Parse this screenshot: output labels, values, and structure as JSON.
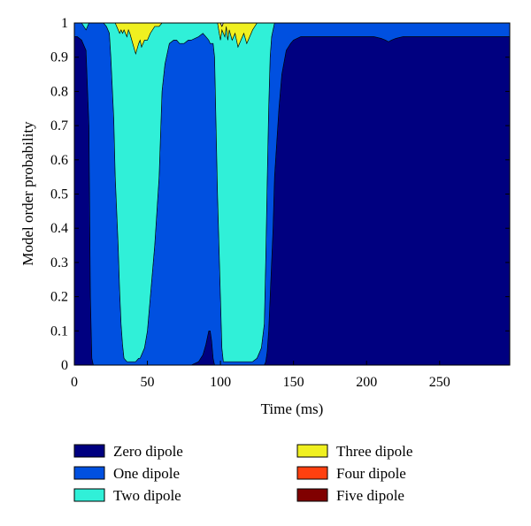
{
  "chart_data": {
    "type": "area",
    "stacked": true,
    "title": "",
    "xlabel": "Time (ms)",
    "ylabel": "Model order probability",
    "xlim": [
      0,
      298
    ],
    "ylim": [
      0,
      1
    ],
    "xticks": [
      0,
      50,
      100,
      150,
      200,
      250
    ],
    "yticks": [
      0,
      0.1,
      0.2,
      0.3,
      0.4,
      0.5,
      0.6,
      0.7,
      0.8,
      0.9,
      1
    ],
    "ytick_labels": [
      "0",
      "0.1",
      "0.2",
      "0.3",
      "0.4",
      "0.5",
      "0.6",
      "0.7",
      "0.8",
      "0.9",
      "1"
    ],
    "grid": false,
    "legend_position": "bottom",
    "x": [
      0,
      2,
      5,
      8,
      10,
      11,
      12,
      13,
      15,
      20,
      22,
      24,
      25,
      27,
      28,
      30,
      31,
      32,
      33,
      34,
      36,
      37,
      38,
      40,
      42,
      44,
      45,
      46,
      48,
      50,
      52,
      55,
      58,
      60,
      62,
      64,
      65,
      68,
      70,
      72,
      75,
      78,
      80,
      85,
      88,
      90,
      92,
      93,
      94,
      95,
      96,
      97,
      98,
      100,
      101,
      102,
      103,
      104,
      105,
      106,
      108,
      110,
      112,
      114,
      116,
      118,
      120,
      122,
      125,
      128,
      130,
      131,
      132,
      133,
      134,
      135,
      136,
      137,
      140,
      142,
      145,
      148,
      150,
      155,
      160,
      170,
      180,
      190,
      200,
      205,
      210,
      213,
      215,
      217,
      220,
      225,
      230,
      240,
      250,
      260,
      270,
      280,
      290,
      298
    ],
    "series": [
      {
        "name": "Zero dipole",
        "color": "#000080",
        "values": [
          0.96,
          0.96,
          0.95,
          0.92,
          0.7,
          0.2,
          0.02,
          0,
          0,
          0,
          0,
          0,
          0,
          0,
          0,
          0,
          0,
          0,
          0,
          0,
          0,
          0,
          0,
          0,
          0,
          0,
          0,
          0,
          0,
          0,
          0,
          0,
          0,
          0,
          0,
          0,
          0,
          0,
          0,
          0,
          0,
          0,
          0,
          0.01,
          0.03,
          0.06,
          0.1,
          0.1,
          0.07,
          0.02,
          0,
          0,
          0,
          0,
          0,
          0,
          0,
          0,
          0,
          0,
          0,
          0,
          0,
          0,
          0,
          0,
          0,
          0,
          0,
          0,
          0,
          0.01,
          0.04,
          0.1,
          0.2,
          0.3,
          0.4,
          0.55,
          0.75,
          0.85,
          0.92,
          0.94,
          0.95,
          0.96,
          0.96,
          0.96,
          0.96,
          0.96,
          0.96,
          0.96,
          0.955,
          0.95,
          0.945,
          0.95,
          0.955,
          0.96,
          0.96,
          0.96,
          0.96,
          0.96,
          0.96,
          0.96,
          0.96,
          0.96
        ]
      },
      {
        "name": "One dipole",
        "color": "#0050e0",
        "values": [
          0.04,
          0.04,
          0.05,
          0.06,
          0.3,
          0.8,
          0.98,
          1,
          1,
          1,
          0.99,
          0.97,
          0.9,
          0.72,
          0.55,
          0.35,
          0.22,
          0.12,
          0.06,
          0.02,
          0.01,
          0.01,
          0.01,
          0.01,
          0.01,
          0.02,
          0.02,
          0.03,
          0.05,
          0.1,
          0.2,
          0.35,
          0.55,
          0.8,
          0.88,
          0.92,
          0.94,
          0.95,
          0.95,
          0.94,
          0.94,
          0.95,
          0.95,
          0.95,
          0.94,
          0.9,
          0.85,
          0.84,
          0.87,
          0.92,
          0.9,
          0.7,
          0.5,
          0.2,
          0.05,
          0.01,
          0.01,
          0.01,
          0.01,
          0.01,
          0.01,
          0.01,
          0.01,
          0.01,
          0.01,
          0.01,
          0.01,
          0.01,
          0.02,
          0.05,
          0.12,
          0.3,
          0.5,
          0.65,
          0.7,
          0.66,
          0.58,
          0.5,
          0.25,
          0.15,
          0.08,
          0.06,
          0.05,
          0.04,
          0.04,
          0.04,
          0.04,
          0.04,
          0.04,
          0.04,
          0.045,
          0.05,
          0.055,
          0.05,
          0.045,
          0.04,
          0.04,
          0.04,
          0.04,
          0.04,
          0.04,
          0.04,
          0.04,
          0.04
        ]
      },
      {
        "name": "Two dipole",
        "color": "#30f0d8",
        "values": [
          0,
          0,
          0,
          0.02,
          0,
          0,
          0,
          0,
          0,
          0,
          0.01,
          0.03,
          0.1,
          0.28,
          0.45,
          0.63,
          0.75,
          0.86,
          0.91,
          0.96,
          0.95,
          0.97,
          0.96,
          0.93,
          0.9,
          0.92,
          0.93,
          0.9,
          0.9,
          0.85,
          0.77,
          0.64,
          0.44,
          0.2,
          0.12,
          0.08,
          0.06,
          0.05,
          0.05,
          0.06,
          0.06,
          0.05,
          0.05,
          0.04,
          0.03,
          0.04,
          0.05,
          0.06,
          0.06,
          0.06,
          0.1,
          0.3,
          0.5,
          0.75,
          0.93,
          0.96,
          0.95,
          0.98,
          0.94,
          0.97,
          0.94,
          0.96,
          0.92,
          0.94,
          0.96,
          0.93,
          0.95,
          0.97,
          0.98,
          0.95,
          0.88,
          0.69,
          0.46,
          0.25,
          0.1,
          0.04,
          0.02,
          0,
          0,
          0,
          0,
          0,
          0,
          0,
          0,
          0,
          0,
          0,
          0,
          0,
          0,
          0,
          0,
          0,
          0,
          0,
          0,
          0,
          0,
          0,
          0,
          0,
          0,
          0
        ]
      },
      {
        "name": "Three dipole",
        "color": "#f0f020",
        "values": [
          0,
          0,
          0,
          0,
          0,
          0,
          0,
          0,
          0,
          0,
          0,
          0,
          0,
          0,
          0,
          0.02,
          0.03,
          0.02,
          0.03,
          0.02,
          0.04,
          0.02,
          0.03,
          0.06,
          0.09,
          0.06,
          0.05,
          0.07,
          0.05,
          0.05,
          0.03,
          0.01,
          0.01,
          0,
          0,
          0,
          0,
          0,
          0,
          0,
          0,
          0,
          0,
          0,
          0,
          0,
          0,
          0,
          0,
          0,
          0,
          0,
          0,
          0.05,
          0.01,
          0.03,
          0.04,
          0.01,
          0.05,
          0.02,
          0.05,
          0.03,
          0.07,
          0.05,
          0.03,
          0.06,
          0.04,
          0.02,
          0,
          0,
          0,
          0,
          0,
          0,
          0,
          0,
          0,
          0,
          0,
          0,
          0,
          0,
          0,
          0,
          0,
          0,
          0,
          0,
          0,
          0,
          0,
          0,
          0,
          0,
          0,
          0,
          0,
          0,
          0,
          0,
          0,
          0,
          0,
          0
        ]
      },
      {
        "name": "Four dipole",
        "color": "#ff4010",
        "values": [
          0,
          0,
          0,
          0,
          0,
          0,
          0,
          0,
          0,
          0,
          0,
          0,
          0,
          0,
          0,
          0,
          0,
          0,
          0,
          0,
          0,
          0,
          0,
          0,
          0,
          0,
          0,
          0,
          0,
          0,
          0,
          0,
          0,
          0,
          0,
          0,
          0,
          0,
          0,
          0,
          0,
          0,
          0,
          0,
          0,
          0,
          0,
          0,
          0,
          0,
          0,
          0,
          0,
          0,
          0,
          0,
          0,
          0,
          0,
          0,
          0,
          0,
          0,
          0,
          0,
          0,
          0,
          0,
          0,
          0,
          0,
          0,
          0,
          0,
          0,
          0,
          0,
          0,
          0,
          0,
          0,
          0,
          0,
          0,
          0,
          0,
          0,
          0,
          0,
          0,
          0,
          0,
          0,
          0,
          0,
          0,
          0,
          0,
          0,
          0,
          0,
          0,
          0,
          0
        ]
      },
      {
        "name": "Five dipole",
        "color": "#800000",
        "values": [
          0,
          0,
          0,
          0,
          0,
          0,
          0,
          0,
          0,
          0,
          0,
          0,
          0,
          0,
          0,
          0,
          0,
          0,
          0,
          0,
          0,
          0,
          0,
          0,
          0,
          0,
          0,
          0,
          0,
          0,
          0,
          0,
          0,
          0,
          0,
          0,
          0,
          0,
          0,
          0,
          0,
          0,
          0,
          0,
          0,
          0,
          0,
          0,
          0,
          0,
          0,
          0,
          0,
          0,
          0,
          0,
          0,
          0,
          0,
          0,
          0,
          0,
          0,
          0,
          0,
          0,
          0,
          0,
          0,
          0,
          0,
          0,
          0,
          0,
          0,
          0,
          0,
          0,
          0,
          0,
          0,
          0,
          0,
          0,
          0,
          0,
          0,
          0,
          0,
          0,
          0,
          0,
          0,
          0,
          0,
          0,
          0,
          0,
          0,
          0,
          0,
          0,
          0,
          0
        ]
      }
    ]
  }
}
